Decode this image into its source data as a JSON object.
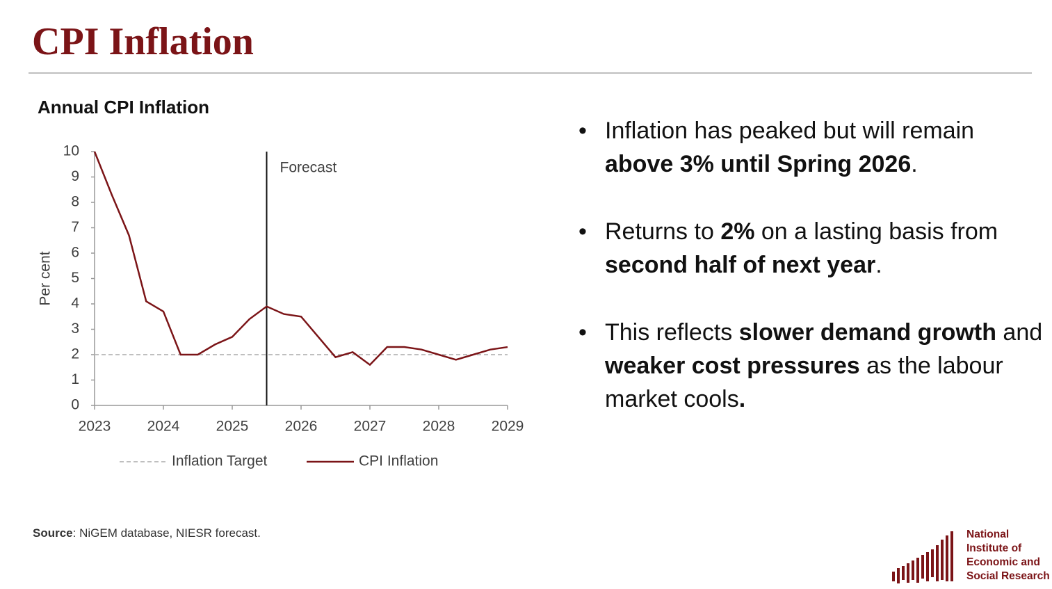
{
  "slide": {
    "title": "CPI Inflation",
    "bullets": [
      [
        {
          "text": "Inflation has peaked but will remain ",
          "bold": false
        },
        {
          "text": "above 3% until Spring 2026",
          "bold": true
        },
        {
          "text": ".",
          "bold": false
        }
      ],
      [
        {
          "text": "Returns to ",
          "bold": false
        },
        {
          "text": "2%",
          "bold": true
        },
        {
          "text": " on a lasting basis from ",
          "bold": false
        },
        {
          "text": "second half of next year",
          "bold": true
        },
        {
          "text": ".",
          "bold": false
        }
      ],
      [
        {
          "text": "This reflects ",
          "bold": false
        },
        {
          "text": "slower demand growth",
          "bold": true
        },
        {
          "text": " and ",
          "bold": false
        },
        {
          "text": "weaker cost pressures",
          "bold": true
        },
        {
          "text": " as the labour market cools",
          "bold": false
        },
        {
          "text": ".",
          "bold": true
        }
      ]
    ],
    "source_label": "Source",
    "source_text": ": NiGEM database, NIESR forecast.",
    "logo_lines": [
      "National",
      "Institute of",
      "Economic and",
      "Social Research"
    ]
  },
  "chart_data": {
    "type": "line",
    "title": "Annual CPI Inflation",
    "ylabel": "Per cent",
    "x": [
      2023,
      2023.25,
      2023.5,
      2023.75,
      2024,
      2024.25,
      2024.5,
      2024.75,
      2025,
      2025.25,
      2025.5,
      2025.75,
      2026,
      2026.25,
      2026.5,
      2026.75,
      2027,
      2027.25,
      2027.5,
      2027.75,
      2028,
      2028.25,
      2028.5,
      2028.75,
      2029
    ],
    "series": [
      {
        "name": "Inflation Target",
        "color": "#bfbfbf",
        "dashed": true,
        "values": [
          2,
          2,
          2,
          2,
          2,
          2,
          2,
          2,
          2,
          2,
          2,
          2,
          2,
          2,
          2,
          2,
          2,
          2,
          2,
          2,
          2,
          2,
          2,
          2,
          2
        ]
      },
      {
        "name": "CPI Inflation",
        "color": "#7b1417",
        "dashed": false,
        "values": [
          10.0,
          8.3,
          6.7,
          4.1,
          3.7,
          2.0,
          2.0,
          2.4,
          2.7,
          3.4,
          3.9,
          3.6,
          3.5,
          2.7,
          1.9,
          2.1,
          1.6,
          2.3,
          2.3,
          2.2,
          2.0,
          1.8,
          2.0,
          2.2,
          2.3
        ]
      }
    ],
    "annotation": {
      "text": "Forecast",
      "x": 2025.5
    },
    "xlim": [
      2023,
      2029
    ],
    "xticks": [
      2023,
      2024,
      2025,
      2026,
      2027,
      2028,
      2029
    ],
    "ylim": [
      0,
      10
    ],
    "yticks": [
      0,
      1,
      2,
      3,
      4,
      5,
      6,
      7,
      8,
      9,
      10
    ]
  }
}
